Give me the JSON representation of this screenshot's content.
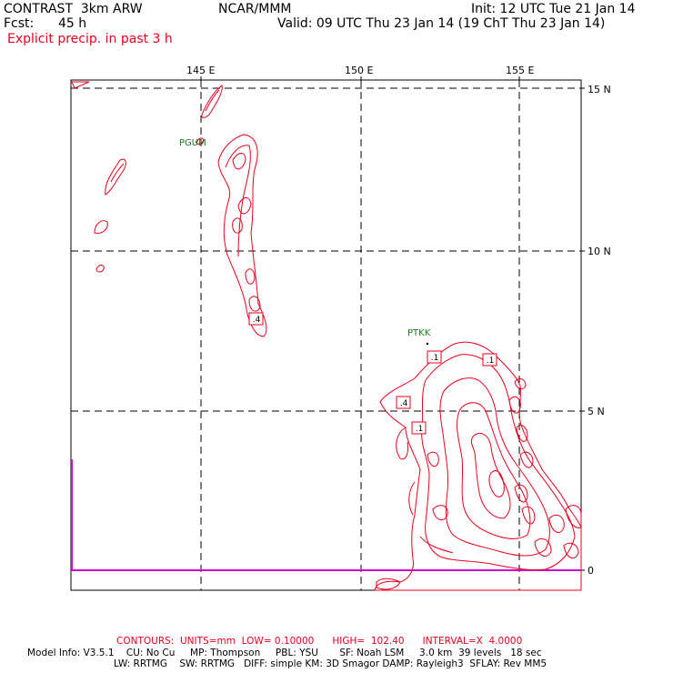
{
  "header": {
    "model": "CONTRAST  3km ARW",
    "center": "NCAR/MMM",
    "init": "Init: 12 UTC Tue 21 Jan 14",
    "fcst_label": "Fcst:",
    "fcst_value": "45 h",
    "valid": "Valid: 09 UTC Thu 23 Jan 14 (19 ChT Thu 23 Jan 14)",
    "field": "Explicit precip. in past 3 h"
  },
  "axes": {
    "lon_labels": [
      "145 E",
      "150 E",
      "155 E"
    ],
    "lat_labels": [
      "15 N",
      "10 N",
      "5 N",
      "0"
    ]
  },
  "stations": [
    "PGUM",
    "PTKK"
  ],
  "contour_labels": [
    ".4",
    ".1",
    ".1",
    ".4",
    ".1"
  ],
  "footer": {
    "contours": "CONTOURS:  UNITS=mm  LOW= 0.10000      HIGH=  102.40      INTERVAL=X  4.0000",
    "model_info_1": "Model Info: V3.5.1    CU: No Cu     MP: Thompson     PBL: YSU       SF: Noah LSM     3.0 km  39 levels   18 sec",
    "model_info_2": "LW: RRTMG    SW: RRTMG   DIFF: simple KM: 3D Smagor DAMP: Rayleigh3  SFLAY: Rev MM5"
  },
  "colors": {
    "contour": "#e8001c",
    "station": "#1a7a1a",
    "boundary": "#d000d0",
    "grid": "#000000"
  }
}
